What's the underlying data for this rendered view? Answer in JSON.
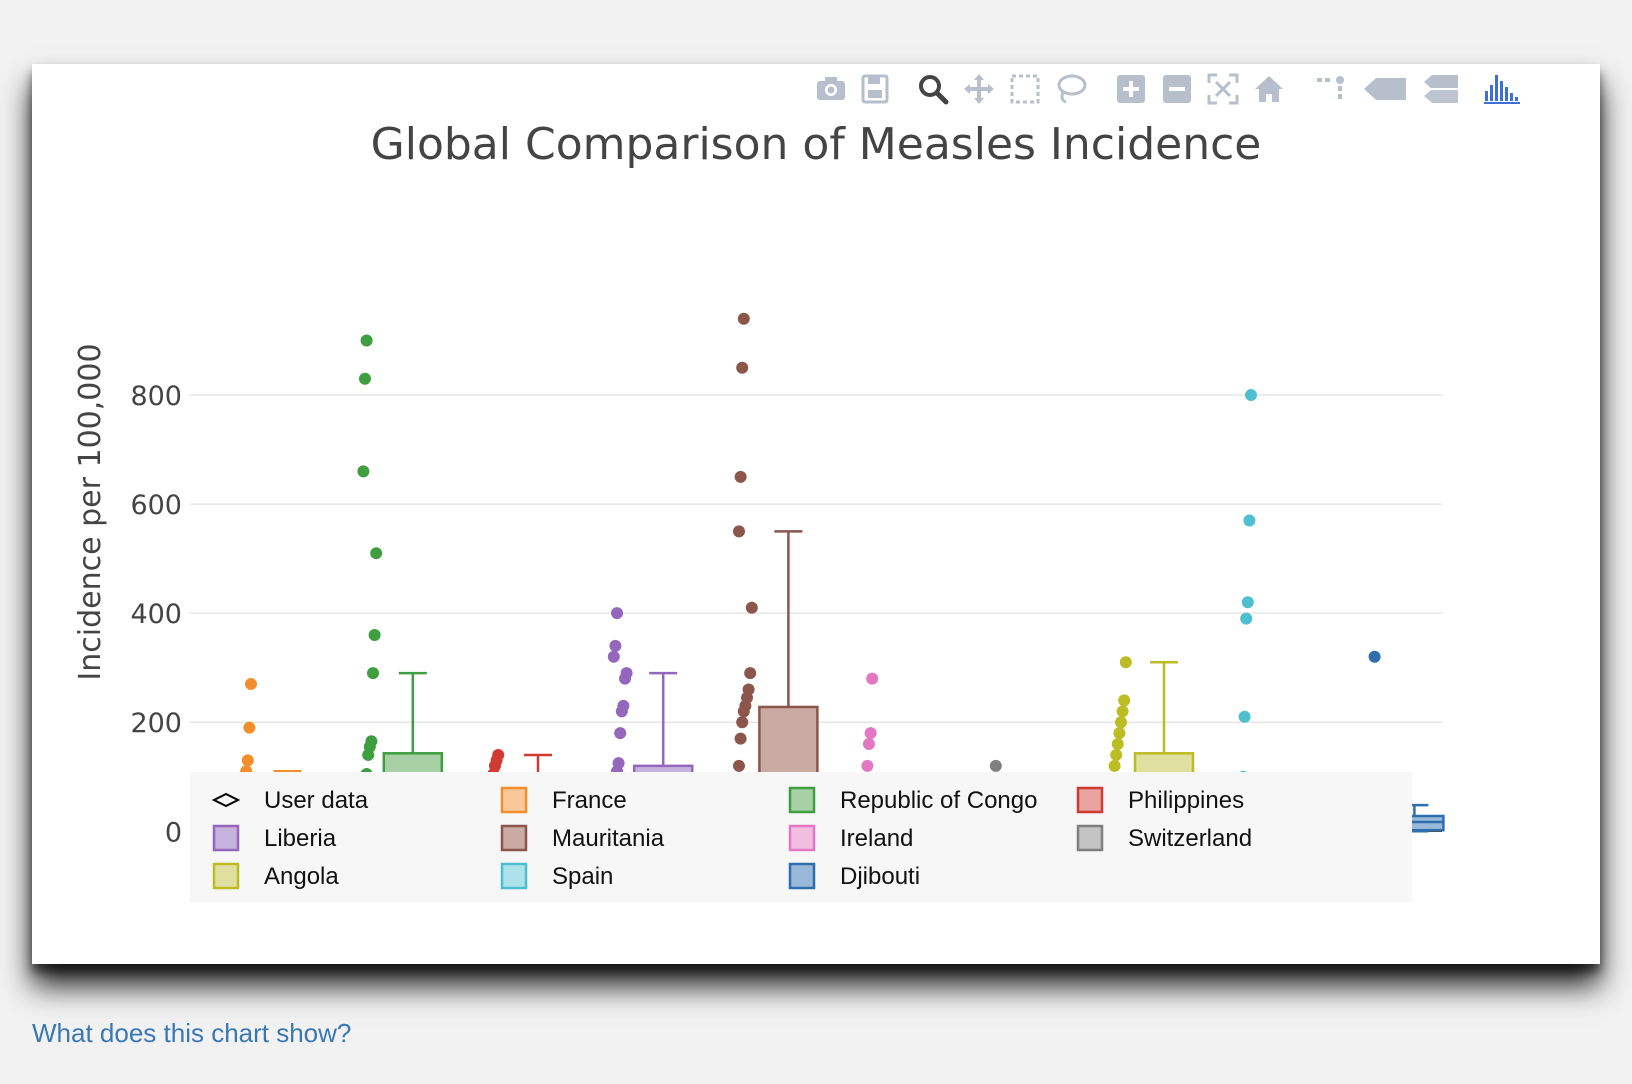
{
  "modebar": {
    "buttons": [
      {
        "name": "camera-icon"
      },
      {
        "name": "save-icon"
      },
      {
        "name": "zoom-icon"
      },
      {
        "name": "pan-icon"
      },
      {
        "name": "box-select-icon"
      },
      {
        "name": "lasso-icon"
      },
      {
        "name": "zoom-in-icon"
      },
      {
        "name": "zoom-out-icon"
      },
      {
        "name": "autoscale-icon"
      },
      {
        "name": "home-icon"
      },
      {
        "name": "spike-lines-icon"
      },
      {
        "name": "hover-closest-icon"
      },
      {
        "name": "hover-compare-icon"
      },
      {
        "name": "plotly-logo-icon"
      }
    ],
    "icon_color": "#b7bfcc",
    "logo_color": "#3d6fd6"
  },
  "chart_data": {
    "type": "box",
    "title": "Global Comparison of Measles Incidence",
    "ylabel": "Incidence per 100,000",
    "ylim": [
      -60,
      1000
    ],
    "yticks": [
      0,
      200,
      400,
      600,
      800
    ],
    "grid": true,
    "legend_position": "bottom",
    "user_data": {
      "name": "User data",
      "value": 5
    },
    "series": [
      {
        "name": "France",
        "color": "#f28e2b",
        "fill": "#f9c89a",
        "box": {
          "min": 0,
          "q1": 4,
          "median": 7,
          "q3": 48,
          "max": 110
        },
        "points": [
          0,
          0,
          0,
          0,
          0,
          0,
          2,
          4,
          10,
          15,
          22,
          80,
          90,
          100,
          110,
          130,
          190,
          270
        ]
      },
      {
        "name": "Republic of Congo",
        "color": "#3f9e3f",
        "fill": "#a7d1a4",
        "box": {
          "min": 0,
          "q1": 4,
          "median": 25,
          "q3": 143,
          "max": 290
        },
        "points": [
          0,
          0,
          0,
          5,
          10,
          20,
          30,
          40,
          55,
          70,
          90,
          105,
          140,
          155,
          165,
          290,
          360,
          510,
          660,
          830,
          900
        ]
      },
      {
        "name": "Philippines",
        "color": "#d13a32",
        "fill": "#e9a3a0",
        "box": {
          "min": 0,
          "q1": 4,
          "median": 8,
          "q3": 65,
          "max": 140
        },
        "points": [
          0,
          0,
          0,
          2,
          5,
          8,
          12,
          40,
          50,
          60,
          75,
          90,
          105,
          120,
          130,
          140
        ]
      },
      {
        "name": "Liberia",
        "color": "#9467bd",
        "fill": "#c7b2dd",
        "box": {
          "min": 0,
          "q1": 2,
          "median": 37,
          "q3": 120,
          "max": 290
        },
        "points": [
          0,
          0,
          0,
          0,
          5,
          10,
          20,
          30,
          40,
          60,
          90,
          110,
          125,
          180,
          220,
          230,
          280,
          290,
          320,
          340,
          400
        ]
      },
      {
        "name": "Mauritania",
        "color": "#8c564b",
        "fill": "#c9aba4",
        "box": {
          "min": 0,
          "q1": 2,
          "median": 48,
          "q3": 228,
          "max": 550
        },
        "points": [
          0,
          0,
          0,
          5,
          10,
          20,
          30,
          50,
          70,
          120,
          170,
          200,
          220,
          230,
          245,
          260,
          290,
          410,
          550,
          650,
          850,
          940
        ]
      },
      {
        "name": "Ireland",
        "color": "#e377c2",
        "fill": "#f1bde0",
        "box": {
          "min": 0,
          "q1": 2,
          "median": 12,
          "q3": 27,
          "max": 55
        },
        "points": [
          0,
          0,
          0,
          0,
          2,
          5,
          10,
          20,
          30,
          40,
          55,
          120,
          160,
          180,
          280
        ]
      },
      {
        "name": "Switzerland",
        "color": "#7f7f7f",
        "fill": "#c4c4c4",
        "box": {
          "min": 0,
          "q1": 5,
          "median": 17,
          "q3": 30,
          "max": 62
        },
        "points": [
          0,
          0,
          0,
          2,
          5,
          10,
          15,
          20,
          30,
          40,
          55,
          70,
          95,
          120
        ]
      },
      {
        "name": "Angola",
        "color": "#bcbd22",
        "fill": "#dfe0a0",
        "box": {
          "min": 0,
          "q1": 4,
          "median": 33,
          "q3": 143,
          "max": 310
        },
        "points": [
          0,
          0,
          5,
          10,
          20,
          30,
          45,
          60,
          70,
          120,
          140,
          160,
          180,
          200,
          220,
          240,
          310
        ]
      },
      {
        "name": "Spain",
        "color": "#4dbfcf",
        "fill": "#aee2ea",
        "box": {
          "min": 0,
          "q1": 2,
          "median": 6,
          "q3": 63,
          "max": 100
        },
        "points": [
          0,
          0,
          0,
          2,
          5,
          10,
          20,
          40,
          55,
          70,
          85,
          100,
          210,
          390,
          420,
          570,
          800
        ]
      },
      {
        "name": "Djibouti",
        "color": "#2f6fad",
        "fill": "#98b9d9",
        "box": {
          "min": 0,
          "q1": 2,
          "median": 17,
          "q3": 28,
          "max": 48
        },
        "points": [
          0,
          0,
          0,
          2,
          5,
          10,
          15,
          22,
          30,
          40,
          50,
          60,
          70,
          80,
          90,
          320
        ]
      }
    ],
    "legend_order": [
      "User data",
      "France",
      "Republic of Congo",
      "Philippines",
      "Liberia",
      "Mauritania",
      "Ireland",
      "Switzerland",
      "Angola",
      "Spain",
      "Djibouti"
    ]
  },
  "footer": {
    "help_link": "What does this chart show?"
  }
}
